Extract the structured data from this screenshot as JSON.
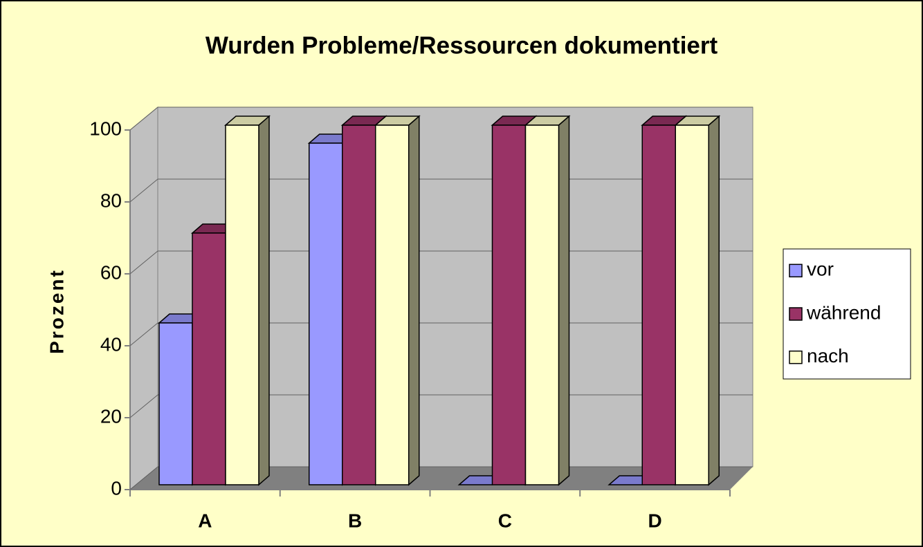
{
  "chart_data": {
    "type": "bar3d",
    "title": "Wurden Probleme/Ressourcen dokumentiert",
    "y_label": "Prozent",
    "categories": [
      "A",
      "B",
      "C",
      "D"
    ],
    "series": [
      {
        "name": "vor",
        "color": "#9999ff",
        "values": [
          45,
          95,
          0,
          0
        ]
      },
      {
        "name": "während",
        "color": "#993366",
        "values": [
          70,
          100,
          100,
          100
        ]
      },
      {
        "name": "nach",
        "color": "#ffffcc",
        "values": [
          100,
          100,
          100,
          100
        ]
      }
    ],
    "ylim": [
      0,
      100
    ],
    "yticks": [
      0,
      20,
      40,
      60,
      80,
      100
    ],
    "grid": true,
    "legend": "right"
  }
}
